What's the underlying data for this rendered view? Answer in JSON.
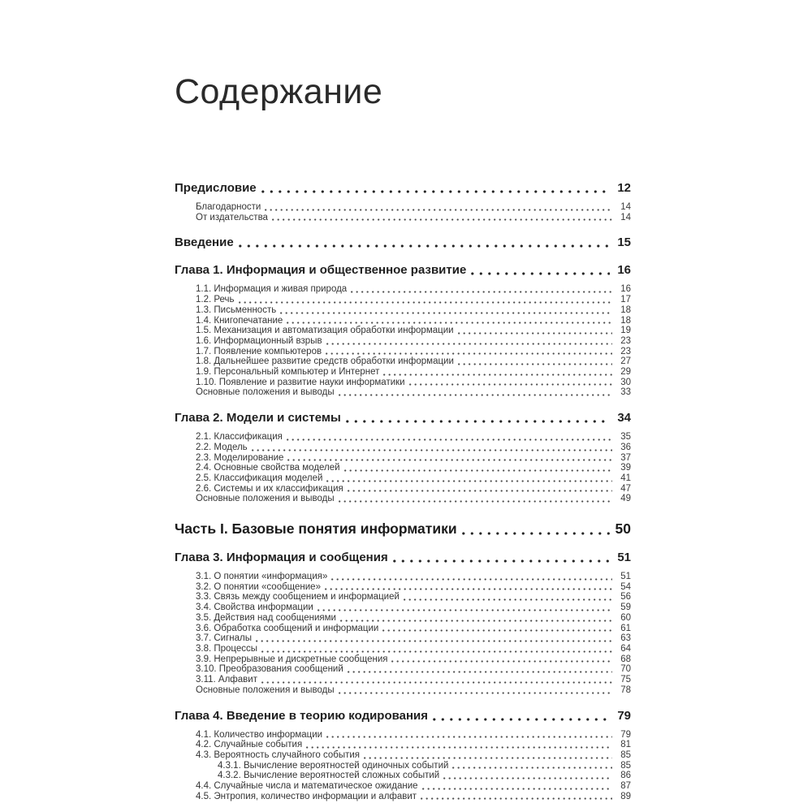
{
  "page": {
    "title": "Содержание"
  },
  "toc": {
    "entries": [
      {
        "label": "Предисловие",
        "page": "12",
        "level": "chapter"
      },
      {
        "label": "Благодарности",
        "page": "14",
        "level": "sub"
      },
      {
        "label": "От издательства",
        "page": "14",
        "level": "sub"
      },
      {
        "label": "Введение",
        "page": "15",
        "level": "chapter"
      },
      {
        "label": "Глава 1. Информация и общественное развитие",
        "page": "16",
        "level": "chapter"
      },
      {
        "label": "1.1. Информация и живая природа",
        "page": "16",
        "level": "sub"
      },
      {
        "label": "1.2. Речь",
        "page": "17",
        "level": "sub"
      },
      {
        "label": "1.3. Письменность",
        "page": "18",
        "level": "sub"
      },
      {
        "label": "1.4. Книгопечатание",
        "page": "18",
        "level": "sub"
      },
      {
        "label": "1.5. Механизация и автоматизация обработки информации",
        "page": "19",
        "level": "sub"
      },
      {
        "label": "1.6. Информационный взрыв",
        "page": "23",
        "level": "sub"
      },
      {
        "label": "1.7. Появление компьютеров",
        "page": "23",
        "level": "sub"
      },
      {
        "label": "1.8. Дальнейшее развитие средств обработки информации",
        "page": "27",
        "level": "sub"
      },
      {
        "label": "1.9. Персональный компьютер и Интернет",
        "page": "29",
        "level": "sub"
      },
      {
        "label": "1.10. Появление и развитие науки информатики",
        "page": "30",
        "level": "sub"
      },
      {
        "label": "Основные положения и выводы",
        "page": "33",
        "level": "sub"
      },
      {
        "label": "Глава 2. Модели и системы",
        "page": "34",
        "level": "chapter"
      },
      {
        "label": "2.1. Классификация",
        "page": "35",
        "level": "sub"
      },
      {
        "label": "2.2. Модель",
        "page": "36",
        "level": "sub"
      },
      {
        "label": "2.3. Моделирование",
        "page": "37",
        "level": "sub"
      },
      {
        "label": "2.4. Основные свойства моделей",
        "page": "39",
        "level": "sub"
      },
      {
        "label": "2.5. Классификация моделей",
        "page": "41",
        "level": "sub"
      },
      {
        "label": "2.6. Системы и их классификация",
        "page": "47",
        "level": "sub"
      },
      {
        "label": "Основные положения и выводы",
        "page": "49",
        "level": "sub"
      },
      {
        "label": "Часть I. Базовые понятия информатики",
        "page": "50",
        "level": "part"
      },
      {
        "label": "Глава 3. Информация и сообщения",
        "page": "51",
        "level": "chapter"
      },
      {
        "label": "3.1. О понятии «информация»",
        "page": "51",
        "level": "sub"
      },
      {
        "label": "3.2. О понятии «сообщение»",
        "page": "54",
        "level": "sub"
      },
      {
        "label": "3.3. Связь между сообщением и информацией",
        "page": "56",
        "level": "sub"
      },
      {
        "label": "3.4. Свойства информации",
        "page": "59",
        "level": "sub"
      },
      {
        "label": "3.5. Действия над сообщениями",
        "page": "60",
        "level": "sub"
      },
      {
        "label": "3.6. Обработка сообщений и информации",
        "page": "61",
        "level": "sub"
      },
      {
        "label": "3.7. Сигналы",
        "page": "63",
        "level": "sub"
      },
      {
        "label": "3.8. Процессы",
        "page": "64",
        "level": "sub"
      },
      {
        "label": "3.9. Непрерывные и дискретные сообщения",
        "page": "68",
        "level": "sub"
      },
      {
        "label": "3.10. Преобразования сообщений",
        "page": "70",
        "level": "sub"
      },
      {
        "label": "3.11. Алфавит",
        "page": "75",
        "level": "sub"
      },
      {
        "label": "Основные положения и выводы",
        "page": "78",
        "level": "sub"
      },
      {
        "label": "Глава 4. Введение в теорию кодирования",
        "page": "79",
        "level": "chapter"
      },
      {
        "label": "4.1. Количество информации",
        "page": "79",
        "level": "sub"
      },
      {
        "label": "4.2. Случайные события",
        "page": "81",
        "level": "sub"
      },
      {
        "label": "4.3. Вероятность случайного события",
        "page": "85",
        "level": "sub"
      },
      {
        "label": "4.3.1. Вычисление вероятностей одиночных событий",
        "page": "85",
        "level": "subsub"
      },
      {
        "label": "4.3.2. Вычисление вероятностей сложных событий",
        "page": "86",
        "level": "subsub"
      },
      {
        "label": "4.4. Случайные числа и математическое ожидание",
        "page": "87",
        "level": "sub"
      },
      {
        "label": "4.5. Энтропия, количество информации и алфавит",
        "page": "89",
        "level": "sub"
      }
    ]
  }
}
